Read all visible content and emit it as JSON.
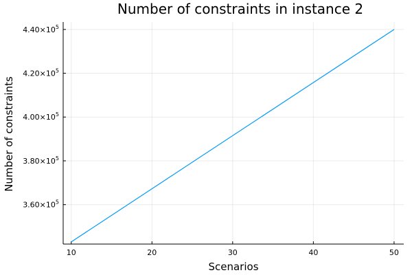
{
  "chart_data": {
    "type": "line",
    "title": "Number of constraints in instance 2",
    "xlabel": "Scenarios",
    "ylabel": "Number of constraints",
    "xlim": [
      9,
      51.2
    ],
    "ylim": [
      342000,
      443400
    ],
    "xticks": [
      10,
      20,
      30,
      40,
      50
    ],
    "yticks": [
      {
        "value": 360000,
        "mantissa": "3.60×10",
        "exponent": "5"
      },
      {
        "value": 380000,
        "mantissa": "3.80×10",
        "exponent": "5"
      },
      {
        "value": 400000,
        "mantissa": "4.00×10",
        "exponent": "5"
      },
      {
        "value": 420000,
        "mantissa": "4.20×10",
        "exponent": "5"
      },
      {
        "value": 440000,
        "mantissa": "4.40×10",
        "exponent": "5"
      }
    ],
    "grid": true,
    "legend": "none",
    "series": [
      {
        "color": "#009af9",
        "x": [
          10,
          50
        ],
        "y": [
          343000,
          440000
        ]
      }
    ]
  }
}
